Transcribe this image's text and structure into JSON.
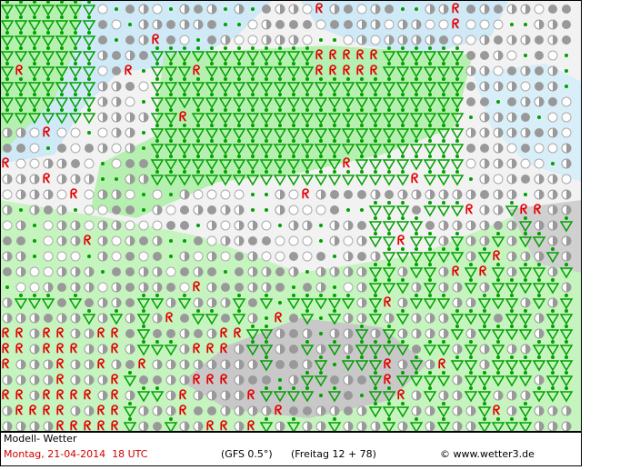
{
  "footer": {
    "model": "Modell- Wetter",
    "date": "Montag, 21-04-2014  18 UTC",
    "gfs": "(GFS 0.5°)",
    "run": "(Freitag 12 + 78)",
    "copyright": "© www.wetter3.de"
  }
}
